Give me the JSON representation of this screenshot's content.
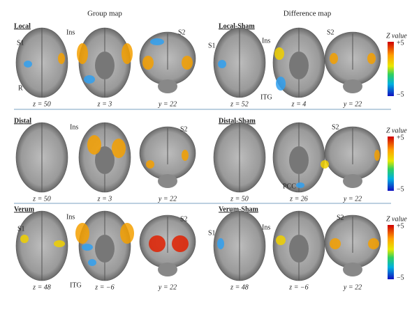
{
  "header": {
    "group": "Group map",
    "difference": "Difference map"
  },
  "rows": [
    {
      "group": {
        "title": "Local",
        "captions": [
          "z = 50",
          "z = 3",
          "y = 22"
        ],
        "labels": [
          "S1",
          "R",
          "Ins",
          "S2"
        ]
      },
      "difference": {
        "title": "Local-Sham",
        "captions": [
          "z = 52",
          "z = 4",
          "y = 22"
        ],
        "labels": [
          "S1",
          "Ins",
          "ITG",
          "S2"
        ]
      },
      "colorbar": {
        "title": "Z value",
        "max": "+5",
        "min": "−5"
      }
    },
    {
      "group": {
        "title": "Distal",
        "captions": [
          "z = 50",
          "z = 3",
          "y = 22"
        ],
        "labels": [
          "Ins",
          "S2"
        ]
      },
      "difference": {
        "title": "Distal-Sham",
        "captions": [
          "z = 50",
          "z = 26",
          "y = 22"
        ],
        "labels": [
          "S2",
          "PCC"
        ]
      },
      "colorbar": {
        "title": "Z value",
        "max": "+5",
        "min": "−5"
      }
    },
    {
      "group": {
        "title": "Verum",
        "captions": [
          "z = 48",
          "z = −6",
          "y = 22"
        ],
        "labels": [
          "S1",
          "Ins",
          "S2",
          "ITG"
        ]
      },
      "difference": {
        "title": "Verum-Sham",
        "captions": [
          "z = 48",
          "z = −6",
          "y = 22"
        ],
        "labels": [
          "S1",
          "Ins",
          "S2"
        ]
      },
      "colorbar": {
        "title": "Z value",
        "max": "+5",
        "min": "−5"
      }
    }
  ]
}
